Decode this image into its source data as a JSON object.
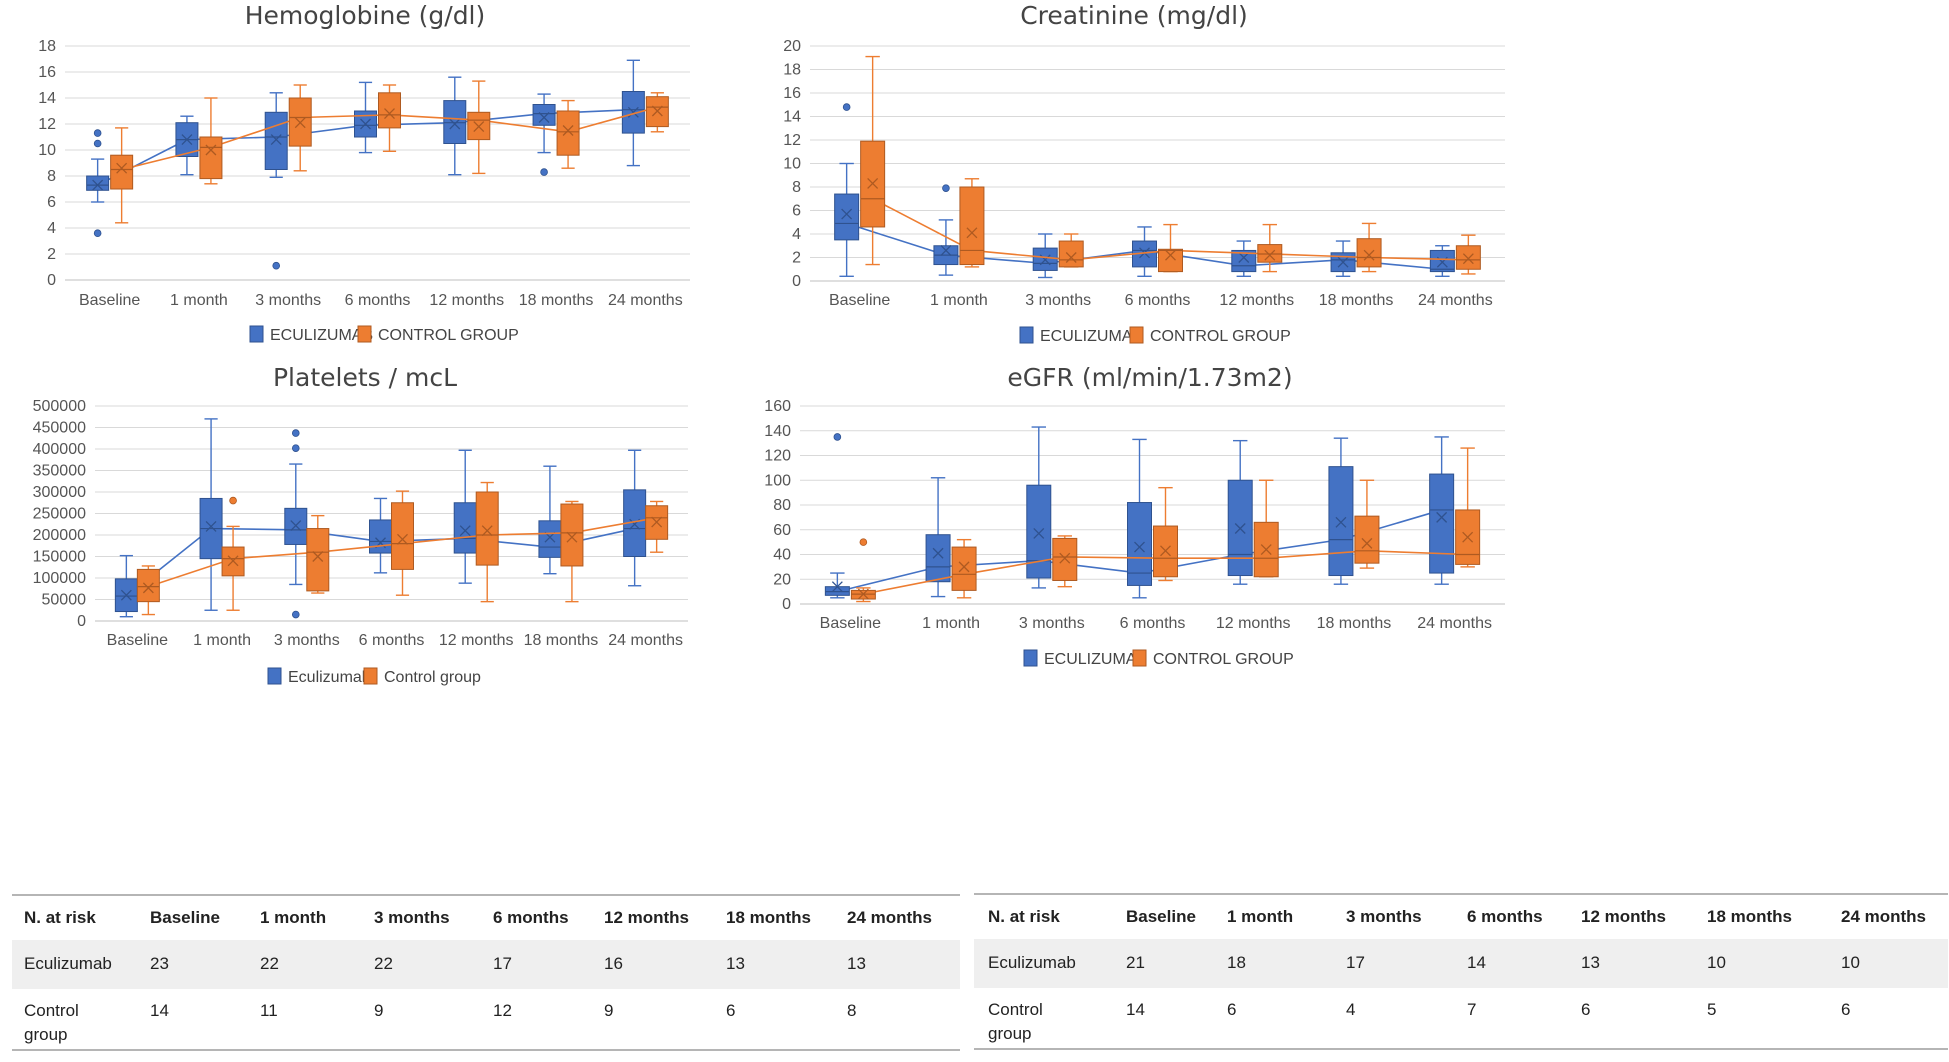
{
  "colors": {
    "eculizumab": "#4472C4",
    "eculizumab_edge": "#2F528F",
    "control": "#ED7D31",
    "control_edge": "#AE5A21",
    "grid": "#d9d9d9",
    "axis": "#bfbfbf"
  },
  "chart_data": [
    {
      "type": "box",
      "title": "Hemoglobine (g/dl)",
      "categories": [
        "Baseline",
        "1 month",
        "3 months",
        "6 months",
        "12 months",
        "18 months",
        "24 months"
      ],
      "ylim": [
        0,
        18
      ],
      "yticks": [
        0,
        2,
        4,
        6,
        8,
        10,
        12,
        14,
        16,
        18
      ],
      "ytick_labels": [
        "0",
        "2",
        "4",
        "6",
        "8",
        "10",
        "12",
        "14",
        "16",
        "18"
      ],
      "legend": [
        "ECULIZUMAB",
        "CONTROL GROUP"
      ],
      "series": [
        {
          "name": "ECULIZUMAB",
          "boxes": [
            {
              "min": 6.0,
              "q1": 6.9,
              "median": 7.3,
              "q3": 8.0,
              "max": 9.3,
              "mean": 7.3,
              "outliers": [
                11.3,
                10.5,
                3.6
              ]
            },
            {
              "min": 8.1,
              "q1": 9.5,
              "median": 10.8,
              "q3": 12.1,
              "max": 12.6,
              "mean": 10.8,
              "outliers": []
            },
            {
              "min": 7.9,
              "q1": 8.5,
              "median": 11.0,
              "q3": 12.9,
              "max": 14.4,
              "mean": 10.8,
              "outliers": [
                1.1
              ]
            },
            {
              "min": 9.8,
              "q1": 11.0,
              "median": 11.9,
              "q3": 13.0,
              "max": 15.2,
              "mean": 12.0,
              "outliers": []
            },
            {
              "min": 8.1,
              "q1": 10.5,
              "median": 12.1,
              "q3": 13.8,
              "max": 15.6,
              "mean": 12.0,
              "outliers": []
            },
            {
              "min": 9.8,
              "q1": 11.9,
              "median": 12.8,
              "q3": 13.5,
              "max": 14.3,
              "mean": 12.5,
              "outliers": [
                8.3
              ]
            },
            {
              "min": 8.8,
              "q1": 11.3,
              "median": 13.1,
              "q3": 14.5,
              "max": 16.9,
              "mean": 12.9,
              "outliers": []
            }
          ]
        },
        {
          "name": "CONTROL GROUP",
          "boxes": [
            {
              "min": 4.4,
              "q1": 7.0,
              "median": 8.5,
              "q3": 9.6,
              "max": 11.7,
              "mean": 8.6,
              "outliers": []
            },
            {
              "min": 7.4,
              "q1": 7.8,
              "median": 10.2,
              "q3": 11.0,
              "max": 14.0,
              "mean": 10.0,
              "outliers": []
            },
            {
              "min": 8.4,
              "q1": 10.3,
              "median": 12.5,
              "q3": 14.0,
              "max": 15.0,
              "mean": 12.1,
              "outliers": []
            },
            {
              "min": 9.9,
              "q1": 11.7,
              "median": 12.7,
              "q3": 14.4,
              "max": 15.0,
              "mean": 12.8,
              "outliers": []
            },
            {
              "min": 8.2,
              "q1": 10.8,
              "median": 12.3,
              "q3": 12.9,
              "max": 15.3,
              "mean": 11.8,
              "outliers": []
            },
            {
              "min": 8.6,
              "q1": 9.6,
              "median": 11.4,
              "q3": 13.0,
              "max": 13.8,
              "mean": 11.5,
              "outliers": []
            },
            {
              "min": 11.4,
              "q1": 11.8,
              "median": 13.3,
              "q3": 14.1,
              "max": 14.4,
              "mean": 13.0,
              "outliers": []
            }
          ]
        }
      ]
    },
    {
      "type": "box",
      "title": "Creatinine (mg/dl)",
      "categories": [
        "Baseline",
        "1 month",
        "3 months",
        "6 months",
        "12 months",
        "18 months",
        "24 months"
      ],
      "ylim": [
        0,
        20
      ],
      "yticks": [
        0,
        2,
        4,
        6,
        8,
        10,
        12,
        14,
        16,
        18,
        20
      ],
      "ytick_labels": [
        "0",
        "2",
        "4",
        "6",
        "8",
        "10",
        "12",
        "14",
        "16",
        "18",
        "20"
      ],
      "legend": [
        "ECULIZUMAB",
        "CONTROL GROUP"
      ],
      "series": [
        {
          "name": "ECULIZUMAB",
          "boxes": [
            {
              "min": 0.4,
              "q1": 3.5,
              "median": 4.9,
              "q3": 7.4,
              "max": 10.0,
              "mean": 5.7,
              "outliers": [
                14.8
              ]
            },
            {
              "min": 0.5,
              "q1": 1.4,
              "median": 2.2,
              "q3": 3.0,
              "max": 5.2,
              "mean": 2.6,
              "outliers": [
                7.9
              ]
            },
            {
              "min": 0.3,
              "q1": 0.9,
              "median": 1.5,
              "q3": 2.8,
              "max": 4.0,
              "mean": 1.8,
              "outliers": []
            },
            {
              "min": 0.4,
              "q1": 1.2,
              "median": 2.6,
              "q3": 3.4,
              "max": 4.6,
              "mean": 2.4,
              "outliers": []
            },
            {
              "min": 0.4,
              "q1": 0.8,
              "median": 1.3,
              "q3": 2.6,
              "max": 3.4,
              "mean": 2.0,
              "outliers": []
            },
            {
              "min": 0.4,
              "q1": 0.8,
              "median": 1.8,
              "q3": 2.4,
              "max": 3.4,
              "mean": 1.6,
              "outliers": []
            },
            {
              "min": 0.4,
              "q1": 0.8,
              "median": 1.0,
              "q3": 2.6,
              "max": 3.0,
              "mean": 1.6,
              "outliers": []
            }
          ]
        },
        {
          "name": "CONTROL GROUP",
          "boxes": [
            {
              "min": 1.4,
              "q1": 4.6,
              "median": 7.0,
              "q3": 11.9,
              "max": 19.1,
              "mean": 8.3,
              "outliers": []
            },
            {
              "min": 1.2,
              "q1": 1.4,
              "median": 2.6,
              "q3": 8.0,
              "max": 8.7,
              "mean": 4.1,
              "outliers": []
            },
            {
              "min": 1.2,
              "q1": 1.2,
              "median": 1.8,
              "q3": 3.4,
              "max": 4.0,
              "mean": 2.0,
              "outliers": []
            },
            {
              "min": 0.8,
              "q1": 0.8,
              "median": 2.6,
              "q3": 2.7,
              "max": 4.8,
              "mean": 2.2,
              "outliers": []
            },
            {
              "min": 0.8,
              "q1": 1.6,
              "median": 2.3,
              "q3": 3.1,
              "max": 4.8,
              "mean": 2.2,
              "outliers": []
            },
            {
              "min": 0.8,
              "q1": 1.2,
              "median": 2.0,
              "q3": 3.6,
              "max": 4.9,
              "mean": 2.2,
              "outliers": []
            },
            {
              "min": 0.6,
              "q1": 1.0,
              "median": 1.8,
              "q3": 3.0,
              "max": 3.9,
              "mean": 1.9,
              "outliers": []
            }
          ]
        }
      ]
    },
    {
      "type": "box",
      "title": "Platelets / mcL",
      "categories": [
        "Baseline",
        "1 month",
        "3 months",
        "6 months",
        "12 months",
        "18 months",
        "24 months"
      ],
      "ylim": [
        0,
        500000
      ],
      "yticks": [
        0,
        50000,
        100000,
        150000,
        200000,
        250000,
        300000,
        350000,
        400000,
        450000,
        500000
      ],
      "ytick_labels": [
        "0",
        "50000",
        "100000",
        "150000",
        "200000",
        "250000",
        "300000",
        "350000",
        "400000",
        "450000",
        "500000"
      ],
      "legend": [
        "Eculizumab",
        "Control group"
      ],
      "series": [
        {
          "name": "Eculizumab",
          "boxes": [
            {
              "min": 10000,
              "q1": 22000,
              "median": 58000,
              "q3": 98000,
              "max": 152000,
              "mean": 60000,
              "outliers": []
            },
            {
              "min": 25000,
              "q1": 145000,
              "median": 215000,
              "q3": 285000,
              "max": 470000,
              "mean": 220000,
              "outliers": []
            },
            {
              "min": 85000,
              "q1": 178000,
              "median": 212000,
              "q3": 262000,
              "max": 365000,
              "mean": 222000,
              "outliers": [
                437000,
                402000,
                15000
              ]
            },
            {
              "min": 112000,
              "q1": 158000,
              "median": 185000,
              "q3": 235000,
              "max": 285000,
              "mean": 182000,
              "outliers": []
            },
            {
              "min": 88000,
              "q1": 158000,
              "median": 192000,
              "q3": 275000,
              "max": 397000,
              "mean": 210000,
              "outliers": []
            },
            {
              "min": 110000,
              "q1": 148000,
              "median": 172000,
              "q3": 233000,
              "max": 360000,
              "mean": 195000,
              "outliers": []
            },
            {
              "min": 82000,
              "q1": 150000,
              "median": 215000,
              "q3": 305000,
              "max": 397000,
              "mean": 225000,
              "outliers": []
            }
          ]
        },
        {
          "name": "Control group",
          "boxes": [
            {
              "min": 15000,
              "q1": 45000,
              "median": 80000,
              "q3": 120000,
              "max": 128000,
              "mean": 77000,
              "outliers": []
            },
            {
              "min": 25000,
              "q1": 105000,
              "median": 145000,
              "q3": 172000,
              "max": 220000,
              "mean": 140000,
              "outliers": [
                280000
              ]
            },
            {
              "min": 65000,
              "q1": 70000,
              "median": 160000,
              "q3": 215000,
              "max": 245000,
              "mean": 150000,
              "outliers": []
            },
            {
              "min": 60000,
              "q1": 120000,
              "median": 180000,
              "q3": 275000,
              "max": 302000,
              "mean": 190000,
              "outliers": []
            },
            {
              "min": 45000,
              "q1": 130000,
              "median": 200000,
              "q3": 300000,
              "max": 322000,
              "mean": 210000,
              "outliers": []
            },
            {
              "min": 45000,
              "q1": 128000,
              "median": 205000,
              "q3": 272000,
              "max": 278000,
              "mean": 195000,
              "outliers": []
            },
            {
              "min": 160000,
              "q1": 190000,
              "median": 240000,
              "q3": 268000,
              "max": 278000,
              "mean": 230000,
              "outliers": []
            }
          ]
        }
      ]
    },
    {
      "type": "box",
      "title": "eGFR (ml/min/1.73m2)",
      "categories": [
        "Baseline",
        "1 month",
        "3 months",
        "6 months",
        "12 months",
        "18 months",
        "24 months"
      ],
      "ylim": [
        0,
        160
      ],
      "yticks": [
        0,
        20,
        40,
        60,
        80,
        100,
        120,
        140,
        160
      ],
      "ytick_labels": [
        "0",
        "20",
        "40",
        "60",
        "80",
        "100",
        "120",
        "140",
        "160"
      ],
      "legend": [
        "ECULIZUMAB",
        "CONTROL GROUP"
      ],
      "series": [
        {
          "name": "ECULIZUMAB",
          "boxes": [
            {
              "min": 5,
              "q1": 7,
              "median": 10,
              "q3": 14,
              "max": 25,
              "mean": 14,
              "outliers": [
                135
              ]
            },
            {
              "min": 6,
              "q1": 18,
              "median": 30,
              "q3": 56,
              "max": 102,
              "mean": 41,
              "outliers": []
            },
            {
              "min": 13,
              "q1": 21,
              "median": 35,
              "q3": 96,
              "max": 143,
              "mean": 57,
              "outliers": []
            },
            {
              "min": 5,
              "q1": 15,
              "median": 25,
              "q3": 82,
              "max": 133,
              "mean": 46,
              "outliers": []
            },
            {
              "min": 16,
              "q1": 23,
              "median": 40,
              "q3": 100,
              "max": 132,
              "mean": 61,
              "outliers": []
            },
            {
              "min": 16,
              "q1": 23,
              "median": 52,
              "q3": 111,
              "max": 134,
              "mean": 66,
              "outliers": []
            },
            {
              "min": 16,
              "q1": 25,
              "median": 76,
              "q3": 105,
              "max": 135,
              "mean": 70,
              "outliers": []
            }
          ]
        },
        {
          "name": "CONTROL GROUP",
          "boxes": [
            {
              "min": 2,
              "q1": 4,
              "median": 8,
              "q3": 11,
              "max": 13,
              "mean": 8,
              "outliers": [
                50
              ]
            },
            {
              "min": 5,
              "q1": 11,
              "median": 24,
              "q3": 46,
              "max": 52,
              "mean": 30,
              "outliers": []
            },
            {
              "min": 14,
              "q1": 19,
              "median": 38,
              "q3": 53,
              "max": 55,
              "mean": 37,
              "outliers": []
            },
            {
              "min": 19,
              "q1": 22,
              "median": 37,
              "q3": 63,
              "max": 94,
              "mean": 43,
              "outliers": []
            },
            {
              "min": 22,
              "q1": 22,
              "median": 37,
              "q3": 66,
              "max": 100,
              "mean": 44,
              "outliers": []
            },
            {
              "min": 29,
              "q1": 33,
              "median": 43,
              "q3": 71,
              "max": 100,
              "mean": 49,
              "outliers": []
            },
            {
              "min": 30,
              "q1": 32,
              "median": 40,
              "q3": 76,
              "max": 126,
              "mean": 54,
              "outliers": []
            }
          ]
        }
      ]
    }
  ],
  "tables": [
    {
      "headers": [
        "N. at risk",
        "Baseline",
        "1  month",
        "3   months",
        "6 months",
        "12 months",
        "18 months",
        "24 months"
      ],
      "rows": [
        {
          "label": "Eculizumab",
          "values": [
            "23",
            "22",
            "22",
            "17",
            "16",
            "13",
            "13"
          ]
        },
        {
          "label": "Control group",
          "values": [
            "14",
            "11",
            "9",
            "12",
            "9",
            "6",
            "8"
          ]
        }
      ]
    },
    {
      "headers": [
        "N. at risk",
        "Baseline",
        "1  month",
        "3   months",
        "6 months",
        "12 months",
        "18 months",
        "24 months"
      ],
      "rows": [
        {
          "label": "Eculizumab",
          "values": [
            "21",
            "18",
            "17",
            "14",
            "13",
            "10",
            "10"
          ]
        },
        {
          "label": "Control group",
          "values": [
            "14",
            "6",
            "4",
            "7",
            "6",
            "5",
            "6"
          ]
        }
      ]
    }
  ]
}
